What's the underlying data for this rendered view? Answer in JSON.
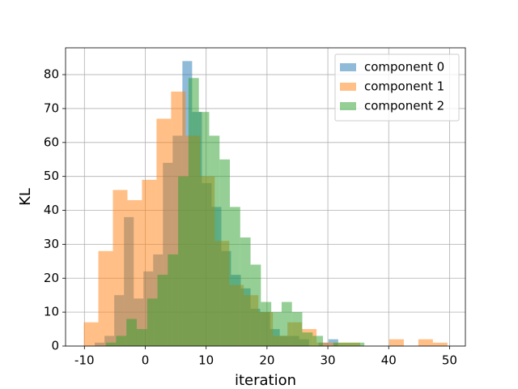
{
  "chart_data": {
    "type": "histogram",
    "x_label": "iteration",
    "y_label": "KL",
    "xlim": [
      -13.1,
      52.6
    ],
    "ylim": [
      0,
      87.9
    ],
    "xticks": [
      -10,
      0,
      10,
      20,
      30,
      40,
      50
    ],
    "yticks": [
      0,
      10,
      20,
      30,
      40,
      50,
      60,
      70,
      80
    ],
    "grid": true,
    "legend": "upper right",
    "alpha": 0.5,
    "series": [
      {
        "name": "component 0",
        "color": "#1f77b4",
        "bins": [
          -8.3,
          -6.7,
          -5.1,
          -3.5,
          -1.9,
          -0.3,
          1.3,
          2.9,
          4.5,
          6.1,
          7.7,
          9.3,
          10.9,
          12.5,
          14.1,
          15.7,
          17.3,
          18.9,
          20.5,
          22.1,
          23.7,
          25.3,
          26.9,
          28.5,
          30.1,
          31.7
        ],
        "values": [
          1,
          3,
          15,
          38,
          14,
          22,
          27,
          54,
          62,
          84,
          69,
          48,
          41,
          28,
          21,
          17,
          11,
          10,
          5,
          3,
          3,
          2,
          0,
          1,
          2
        ]
      },
      {
        "name": "component 1",
        "color": "#ff7f0e",
        "bins": [
          -10.1,
          -7.71,
          -5.32,
          -2.93,
          -0.54,
          1.85,
          4.24,
          6.63,
          9.02,
          11.41,
          13.8,
          16.19,
          18.58,
          20.97,
          23.36,
          25.75,
          28.14,
          30.53,
          32.92,
          35.31,
          37.7,
          40.09,
          42.48,
          44.87,
          47.26,
          49.65
        ],
        "values": [
          7,
          28,
          46,
          43,
          49,
          67,
          75,
          62,
          50,
          31,
          18,
          15,
          10,
          3,
          7,
          5,
          1,
          1,
          1,
          0,
          0,
          2,
          0,
          2,
          1
        ]
      },
      {
        "name": "component 2",
        "color": "#2ca02c",
        "bins": [
          -6.5,
          -4.8,
          -3.1,
          -1.4,
          0.3,
          2.0,
          3.7,
          5.4,
          7.1,
          8.8,
          10.5,
          12.2,
          13.9,
          15.6,
          17.3,
          19.0,
          20.7,
          22.4,
          24.1,
          25.8,
          27.5,
          29.2,
          30.9,
          32.6,
          34.3,
          36.0
        ],
        "values": [
          1,
          3,
          8,
          5,
          14,
          21,
          27,
          50,
          79,
          69,
          62,
          55,
          41,
          32,
          24,
          13,
          10,
          13,
          10,
          4,
          3,
          0,
          1,
          1,
          1
        ]
      }
    ]
  }
}
